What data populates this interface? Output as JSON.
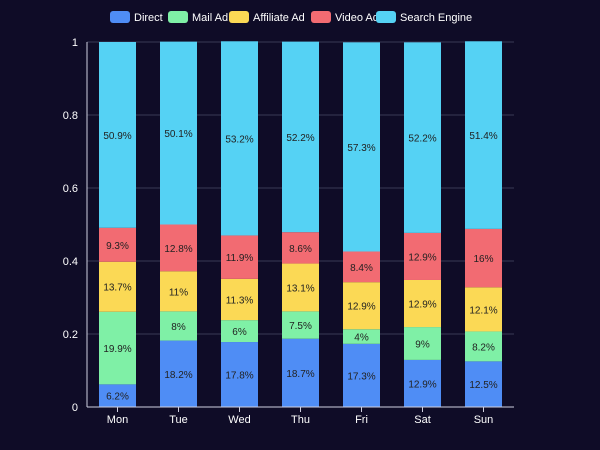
{
  "chart_data": {
    "type": "bar",
    "stacked": true,
    "normalized": true,
    "categories": [
      "Mon",
      "Tue",
      "Wed",
      "Thu",
      "Fri",
      "Sat",
      "Sun"
    ],
    "series": [
      {
        "name": "Direct",
        "color": "#4f8df5",
        "values": [
          0.062,
          0.182,
          0.178,
          0.187,
          0.173,
          0.129,
          0.125
        ],
        "labels": [
          "6.2%",
          "18.2%",
          "17.8%",
          "18.7%",
          "17.3%",
          "12.9%",
          "12.5%"
        ]
      },
      {
        "name": "Mail Ad",
        "color": "#7ff0a6",
        "values": [
          0.199,
          0.08,
          0.06,
          0.075,
          0.04,
          0.09,
          0.082
        ],
        "labels": [
          "19.9%",
          "8%",
          "6%",
          "7.5%",
          "4%",
          "9%",
          "8.2%"
        ]
      },
      {
        "name": "Affiliate Ad",
        "color": "#fbd955",
        "values": [
          0.137,
          0.11,
          0.113,
          0.131,
          0.129,
          0.129,
          0.121
        ],
        "labels": [
          "13.7%",
          "11%",
          "11.3%",
          "13.1%",
          "12.9%",
          "12.9%",
          "12.1%"
        ]
      },
      {
        "name": "Video Ad",
        "color": "#f26b72",
        "values": [
          0.093,
          0.128,
          0.119,
          0.086,
          0.084,
          0.129,
          0.16
        ],
        "labels": [
          "9.3%",
          "12.8%",
          "11.9%",
          "8.6%",
          "8.4%",
          "12.9%",
          "16%"
        ]
      },
      {
        "name": "Search Engine",
        "color": "#55d2f4",
        "values": [
          0.509,
          0.501,
          0.532,
          0.522,
          0.573,
          0.522,
          0.514
        ],
        "labels": [
          "50.9%",
          "50.1%",
          "53.2%",
          "52.2%",
          "57.3%",
          "52.2%",
          "51.4%"
        ]
      }
    ],
    "yticks": [
      "0",
      "0.2",
      "0.4",
      "0.6",
      "0.8",
      "1"
    ],
    "ylim": [
      0,
      1
    ],
    "grid": true,
    "legend": "top-center",
    "title": "",
    "xlabel": "",
    "ylabel": ""
  },
  "colors": {
    "background": "#0f0c27",
    "grid": "#3a3a55",
    "axis": "#cfcfe0",
    "text": "#ffffff",
    "label": "#222222"
  }
}
